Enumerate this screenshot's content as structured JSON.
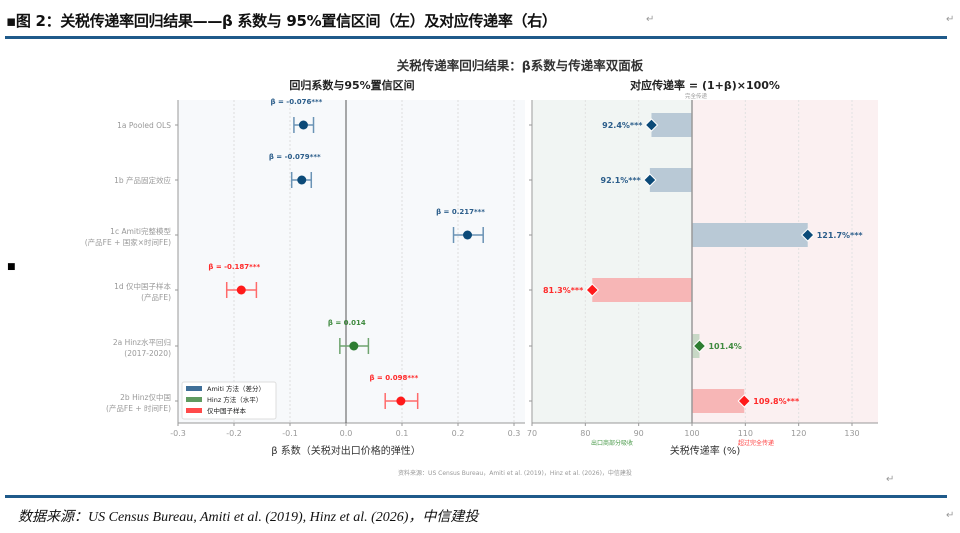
{
  "header": {
    "title": "▪图 2：关税传递率回归结果——β 系数与 95%置信区间（左）及对应传递率（右）"
  },
  "footer": {
    "source": "数据来源：US Census Bureau, Amiti et al. (2019), Hinz et al. (2026)，中信建投"
  },
  "chart_data": [
    {
      "type": "scatter",
      "suptitle": "关税传递率回归结果：β系数与传递率双面板",
      "title": "回归系数与95%置信区间",
      "xlabel": "β 系数（关税对出口价格的弹性）",
      "xlim": [
        -0.3,
        0.32
      ],
      "xticks": [
        "-0.3",
        "-0.2",
        "-0.1",
        "0.0",
        "0.1",
        "0.2",
        "0.3"
      ],
      "xtick_values": [
        -0.3,
        -0.2,
        -0.1,
        0.0,
        0.1,
        0.2,
        0.3
      ],
      "grid": true,
      "legend_position": "bottom-left",
      "legend": [
        {
          "label": "Amiti 方法（差分）",
          "color": "#3f6f98"
        },
        {
          "label": "Hinz 方法（水平）",
          "color": "#5f9a60"
        },
        {
          "label": "仅中国子样本",
          "color": "#ff4a4a"
        }
      ],
      "categories": [
        [
          "1a  Pooled OLS"
        ],
        [
          "1b  产品固定效应"
        ],
        [
          "1c  Amiti完整模型",
          "(产品FE + 国家×时间FE)"
        ],
        [
          "1d  仅中国子样本",
          "(产品FE)"
        ],
        [
          "2a  Hinz水平回归",
          "(2017-2020)"
        ],
        [
          "2b  Hinz仅中国",
          "(产品FE + 时间FE)"
        ]
      ],
      "points": [
        {
          "beta": -0.076,
          "ci": [
            -0.093,
            -0.058
          ],
          "label": "β = -0.076***",
          "group": 0
        },
        {
          "beta": -0.079,
          "ci": [
            -0.097,
            -0.062
          ],
          "label": "β = -0.079***",
          "group": 0
        },
        {
          "beta": 0.217,
          "ci": [
            0.192,
            0.245
          ],
          "label": "β = 0.217***",
          "group": 0
        },
        {
          "beta": -0.187,
          "ci": [
            -0.213,
            -0.16
          ],
          "label": "β = -0.187***",
          "group": 2
        },
        {
          "beta": 0.014,
          "ci": [
            -0.011,
            0.04
          ],
          "label": "β = 0.014",
          "group": 1
        },
        {
          "beta": 0.098,
          "ci": [
            0.07,
            0.128
          ],
          "label": "β = 0.098***",
          "group": 2
        }
      ],
      "source_note": "资料来源：US Census Bureau，Amiti et al. (2019)，Hinz et al. (2026)，中信建投"
    },
    {
      "type": "bar",
      "title": "对应传递率 = (1+β)×100%",
      "xlabel": "关税传递率 (%)",
      "xlim": [
        70,
        135
      ],
      "xticks": [
        "70",
        "80",
        "90",
        "100",
        "110",
        "120",
        "130"
      ],
      "xtick_values": [
        70,
        80,
        90,
        100,
        110,
        120,
        130
      ],
      "baseline": 100,
      "baseline_label": "完全传递",
      "region_left_label": "出口商部分吸收",
      "region_right_label": "超过完全传递",
      "values": [
        92.4,
        92.1,
        121.7,
        81.3,
        101.4,
        109.8
      ],
      "labels": [
        "92.4%***",
        "92.1%***",
        "121.7%***",
        "81.3%***",
        "101.4%",
        "109.8%***"
      ],
      "groups": [
        0,
        0,
        0,
        2,
        1,
        2
      ]
    }
  ],
  "colors": {
    "group_marker": [
      "#0b4a78",
      "#2e7d32",
      "#ff1a1a"
    ],
    "group_text": [
      "#2b5d8a",
      "#3f8a3f",
      "#ff2a2a"
    ],
    "group_bar": [
      "#b9c9d6",
      "#c8d8c6",
      "#f7b6b6"
    ],
    "left_bg": "#f7f9fb",
    "right_bg_left": "#f1f5f3",
    "right_bg_right": "#fbf0f1",
    "rule": "#1f5a8a"
  }
}
